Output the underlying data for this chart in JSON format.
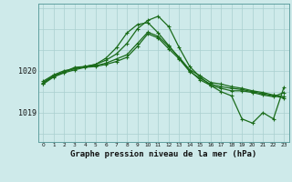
{
  "title": "Graphe pression niveau de la mer (hPa)",
  "bg_color": "#ceeaea",
  "line_color": "#1a6b1a",
  "grid_color": "#aacfcf",
  "ylim": [
    1018.3,
    1021.6
  ],
  "yticks": [
    1019,
    1020
  ],
  "xlim": [
    -0.5,
    23.5
  ],
  "xticks": [
    0,
    1,
    2,
    3,
    4,
    5,
    6,
    7,
    8,
    9,
    10,
    11,
    12,
    13,
    14,
    15,
    16,
    17,
    18,
    19,
    20,
    21,
    22,
    23
  ],
  "series": [
    {
      "x": [
        0,
        1,
        2,
        3,
        4,
        5,
        6,
        7,
        8,
        9,
        10,
        11,
        12,
        13,
        14,
        15,
        16,
        17,
        18,
        19,
        20,
        21,
        22,
        23
      ],
      "y": [
        1019.75,
        1019.9,
        1020.0,
        1020.05,
        1020.1,
        1020.15,
        1020.25,
        1020.4,
        1020.65,
        1021.0,
        1021.2,
        1021.3,
        1021.05,
        1020.55,
        1020.1,
        1019.85,
        1019.65,
        1019.5,
        1019.4,
        1018.85,
        1018.75,
        1019.0,
        1018.85,
        1019.6
      ],
      "lw": 0.9
    },
    {
      "x": [
        0,
        1,
        2,
        3,
        4,
        5,
        6,
        7,
        8,
        9,
        10,
        11,
        12,
        13,
        14,
        15,
        16,
        17,
        18,
        19,
        20,
        21,
        22,
        23
      ],
      "y": [
        1019.72,
        1019.88,
        1019.97,
        1020.05,
        1020.1,
        1020.15,
        1020.3,
        1020.55,
        1020.9,
        1021.1,
        1021.15,
        1020.9,
        1020.6,
        1020.3,
        1020.0,
        1019.78,
        1019.65,
        1019.58,
        1019.52,
        1019.52,
        1019.48,
        1019.42,
        1019.38,
        1019.48
      ],
      "lw": 0.9
    },
    {
      "x": [
        0,
        1,
        2,
        3,
        4,
        5,
        6,
        7,
        8,
        9,
        10,
        11,
        12,
        13,
        14,
        15,
        16,
        17,
        18,
        19,
        20,
        21,
        22,
        23
      ],
      "y": [
        1019.7,
        1019.87,
        1019.97,
        1020.08,
        1020.1,
        1020.12,
        1020.18,
        1020.28,
        1020.38,
        1020.65,
        1020.92,
        1020.82,
        1020.58,
        1020.32,
        1020.02,
        1019.88,
        1019.72,
        1019.68,
        1019.62,
        1019.58,
        1019.52,
        1019.48,
        1019.42,
        1019.38
      ],
      "lw": 0.9
    },
    {
      "x": [
        0,
        1,
        2,
        3,
        4,
        5,
        6,
        7,
        8,
        9,
        10,
        11,
        12,
        13,
        14,
        15,
        16,
        17,
        18,
        19,
        20,
        21,
        22,
        23
      ],
      "y": [
        1019.68,
        1019.85,
        1019.95,
        1020.02,
        1020.08,
        1020.1,
        1020.15,
        1020.22,
        1020.32,
        1020.58,
        1020.88,
        1020.78,
        1020.52,
        1020.28,
        1019.98,
        1019.82,
        1019.68,
        1019.62,
        1019.58,
        1019.55,
        1019.5,
        1019.45,
        1019.4,
        1019.35
      ],
      "lw": 0.9
    }
  ]
}
